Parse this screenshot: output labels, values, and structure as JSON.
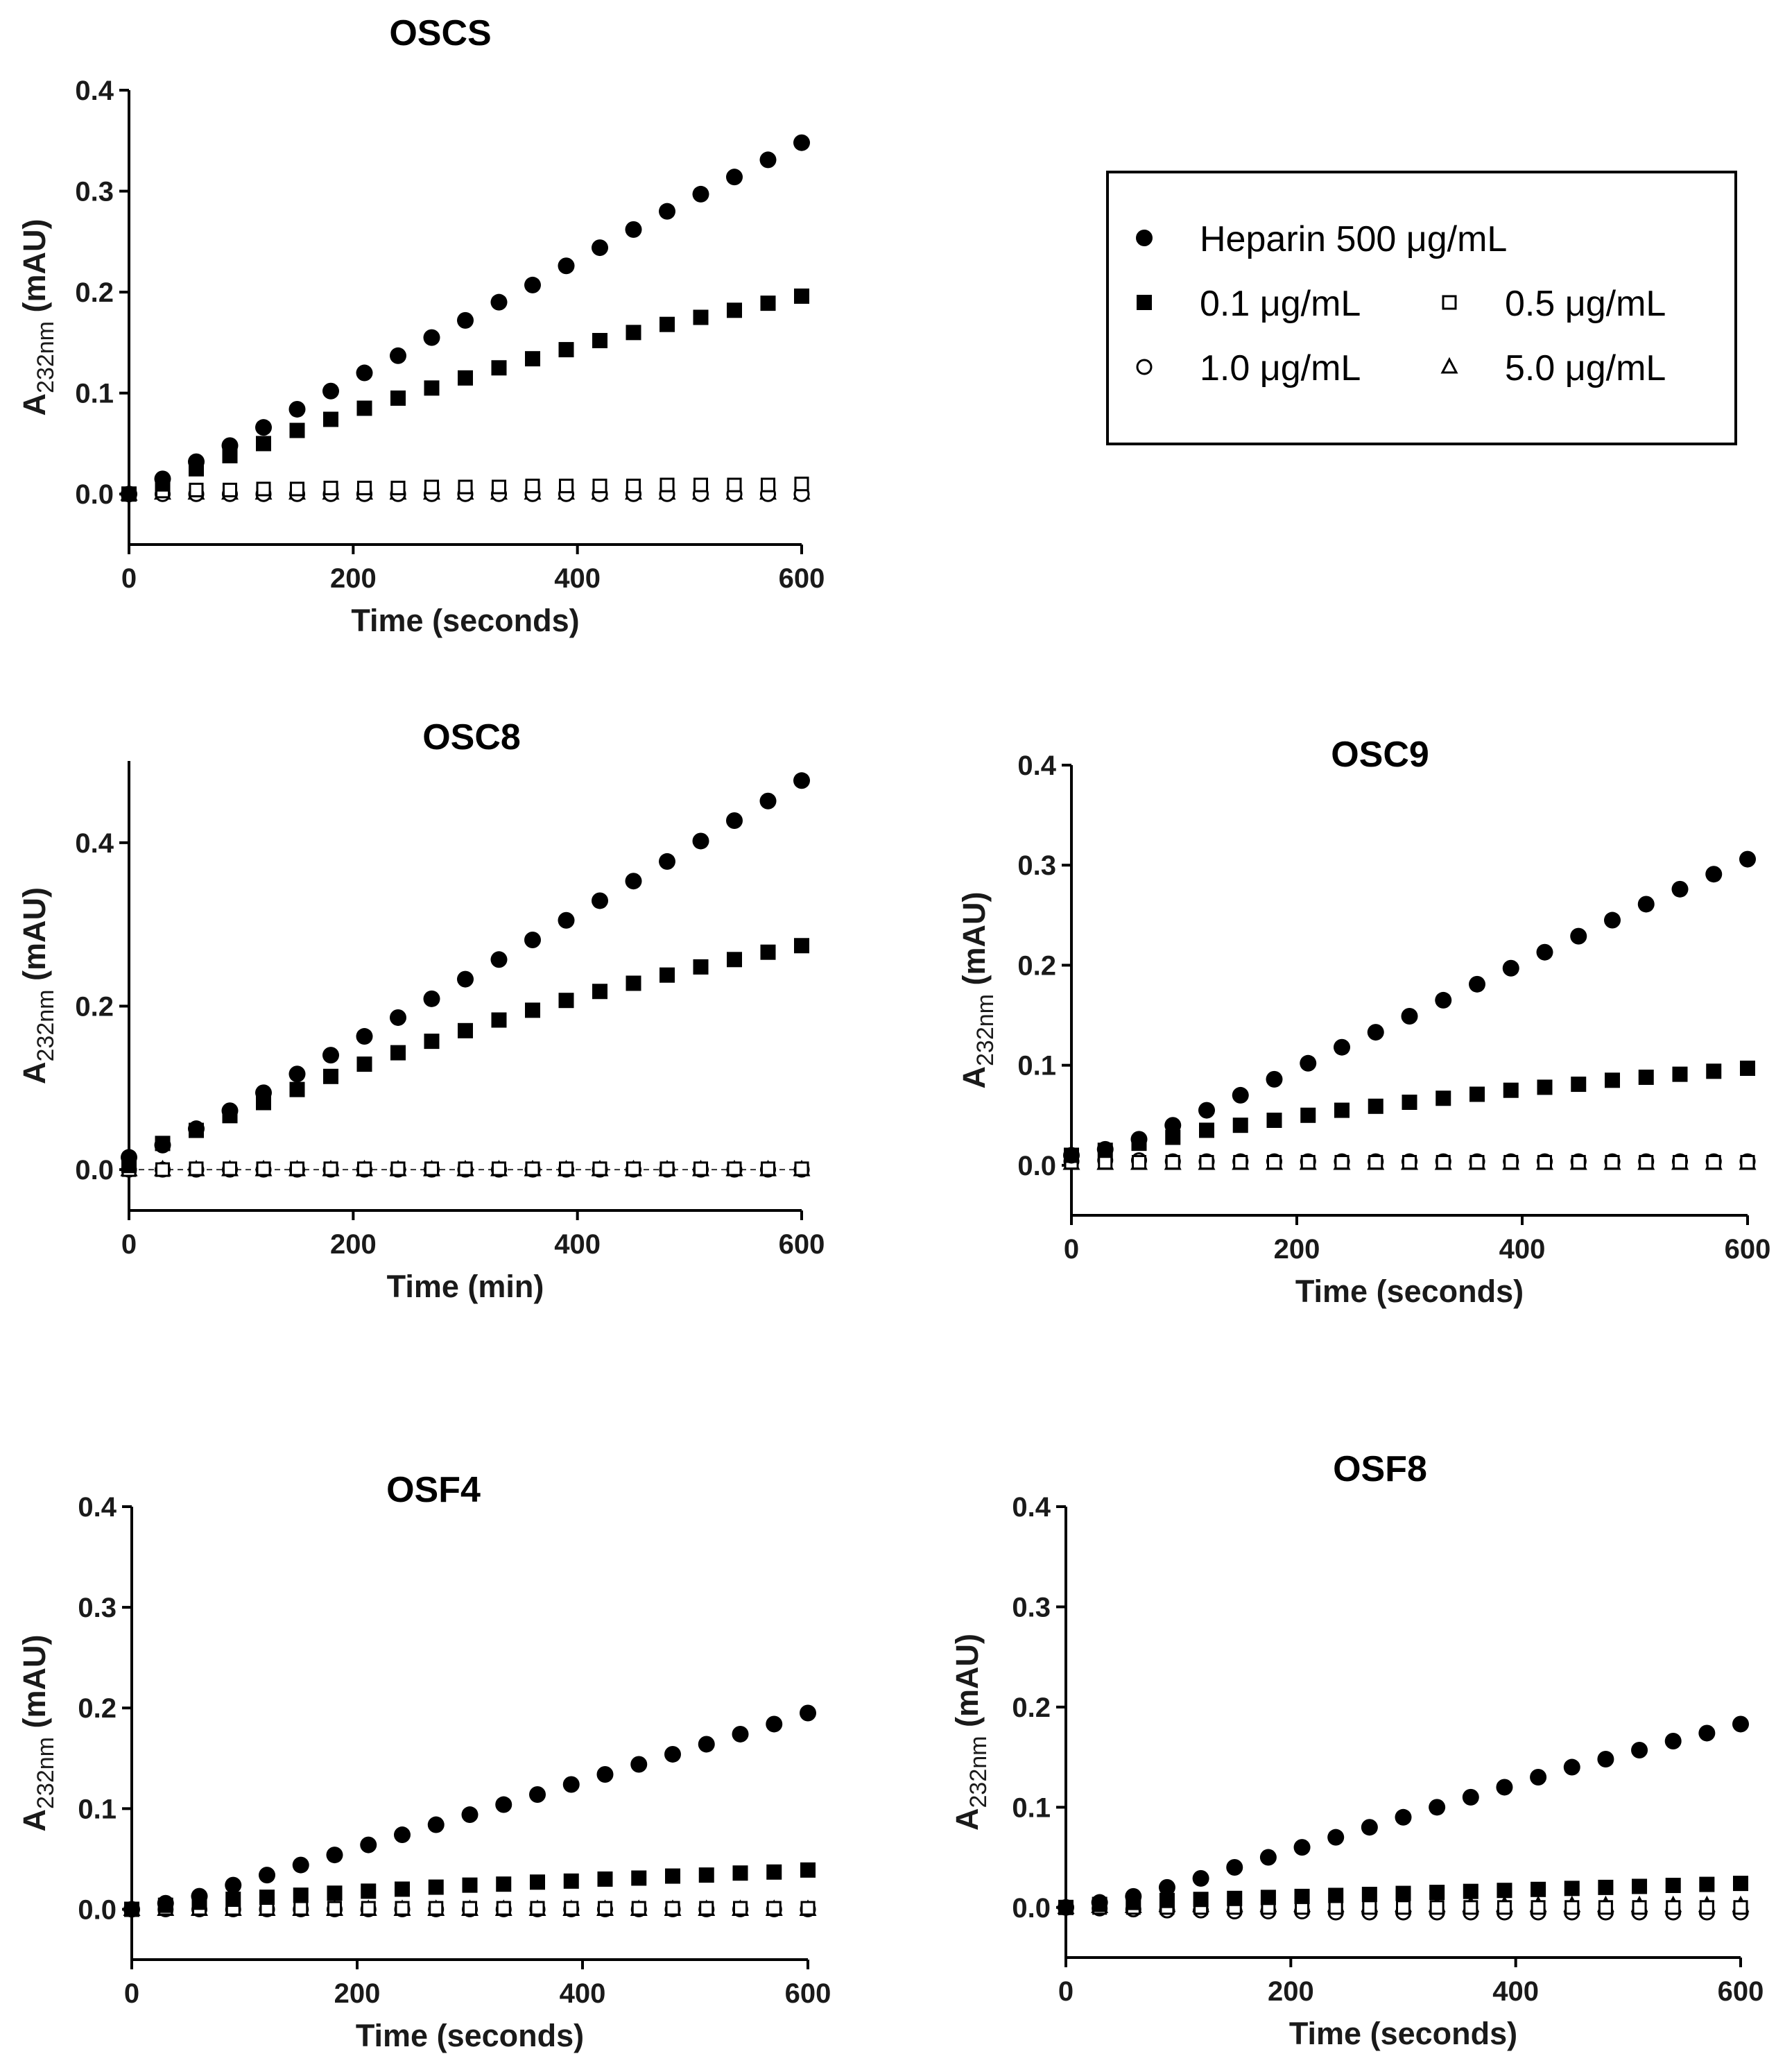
{
  "colors": {
    "marker": "#000000",
    "background": "#ffffff"
  },
  "legend": {
    "entries": [
      {
        "marker": "filled-circle",
        "label": "Heparin 500 μg/mL"
      },
      {
        "marker": "filled-square",
        "label": "0.1 μg/mL"
      },
      {
        "marker": "open-square",
        "label": "0.5 μg/mL"
      },
      {
        "marker": "open-circle",
        "label": "1.0 μg/mL"
      },
      {
        "marker": "open-triangle",
        "label": "5.0 μg/mL"
      }
    ]
  },
  "chart_data": [
    {
      "id": "oscs",
      "type": "scatter",
      "title": "OSCS",
      "xlabel": "Time (seconds)",
      "ylabel_main": "A",
      "ylabel_sub": "232nm",
      "ylabel_unit": " (mAU)",
      "xlim": [
        0,
        600
      ],
      "ylim": [
        -0.05,
        0.4
      ],
      "xticks": [
        0,
        200,
        400,
        600
      ],
      "xtick_labels": [
        "0",
        "200",
        "400",
        "600"
      ],
      "yticks": [
        0.0,
        0.1,
        0.2,
        0.3,
        0.4
      ],
      "ytick_labels": [
        "0.0",
        "0.1",
        "0.2",
        "0.3",
        "0.4"
      ],
      "x": [
        0,
        30,
        60,
        90,
        120,
        150,
        180,
        210,
        240,
        270,
        300,
        330,
        360,
        390,
        420,
        450,
        480,
        510,
        540,
        570,
        600
      ],
      "series": [
        {
          "name": "Heparin 500 μg/mL",
          "marker": "filled-circle",
          "values": [
            0.0,
            0.015,
            0.032,
            0.048,
            0.066,
            0.084,
            0.102,
            0.12,
            0.137,
            0.155,
            0.172,
            0.19,
            0.207,
            0.226,
            0.244,
            0.262,
            0.28,
            0.297,
            0.314,
            0.331,
            0.348
          ]
        },
        {
          "name": "0.1 μg/mL",
          "marker": "filled-square",
          "values": [
            0.0,
            0.01,
            0.025,
            0.038,
            0.05,
            0.063,
            0.074,
            0.085,
            0.095,
            0.105,
            0.115,
            0.125,
            0.134,
            0.143,
            0.152,
            0.16,
            0.168,
            0.175,
            0.182,
            0.189,
            0.196
          ]
        },
        {
          "name": "0.5 μg/mL",
          "marker": "open-square",
          "values": [
            0.0,
            0.003,
            0.004,
            0.004,
            0.005,
            0.005,
            0.006,
            0.006,
            0.006,
            0.007,
            0.007,
            0.007,
            0.008,
            0.008,
            0.008,
            0.008,
            0.009,
            0.009,
            0.009,
            0.009,
            0.01
          ]
        },
        {
          "name": "1.0 μg/mL",
          "marker": "open-circle",
          "values": [
            0.0,
            0.0,
            0.0,
            0.0,
            0.0,
            0.0,
            0.0,
            0.0,
            0.0,
            0.0,
            0.0,
            0.0,
            0.0,
            0.0,
            0.0,
            0.0,
            0.0,
            0.0,
            0.0,
            0.0,
            0.0
          ]
        },
        {
          "name": "5.0 μg/mL",
          "marker": "open-triangle",
          "values": [
            0.0,
            0.001,
            0.001,
            0.001,
            0.001,
            0.001,
            0.001,
            0.001,
            0.001,
            0.001,
            0.001,
            0.001,
            0.001,
            0.001,
            0.001,
            0.001,
            0.001,
            0.001,
            0.001,
            0.001,
            0.001
          ]
        }
      ]
    },
    {
      "id": "osc8",
      "type": "scatter",
      "title": "OSC8",
      "xlabel": "Time (min)",
      "ylabel_main": "A",
      "ylabel_sub": "232nm",
      "ylabel_unit": " (mAU)",
      "xlim": [
        0,
        600
      ],
      "ylim": [
        -0.05,
        0.5
      ],
      "xticks": [
        0,
        200,
        400,
        600
      ],
      "xtick_labels": [
        "0",
        "200",
        "400",
        "600"
      ],
      "yticks": [
        0.0,
        0.2,
        0.4
      ],
      "ytick_labels": [
        "0.0",
        "0.2",
        "0.4"
      ],
      "x": [
        0,
        30,
        60,
        90,
        120,
        150,
        180,
        210,
        240,
        270,
        300,
        330,
        360,
        390,
        420,
        450,
        480,
        510,
        540,
        570,
        600
      ],
      "series": [
        {
          "name": "Heparin 500 μg/mL",
          "marker": "filled-circle",
          "values": [
            0.015,
            0.03,
            0.05,
            0.072,
            0.094,
            0.117,
            0.14,
            0.163,
            0.186,
            0.209,
            0.233,
            0.257,
            0.281,
            0.305,
            0.329,
            0.353,
            0.377,
            0.402,
            0.427,
            0.451,
            0.476
          ]
        },
        {
          "name": "0.1 μg/mL",
          "marker": "filled-square",
          "values": [
            0.005,
            0.032,
            0.048,
            0.066,
            0.082,
            0.098,
            0.114,
            0.129,
            0.143,
            0.157,
            0.17,
            0.183,
            0.195,
            0.207,
            0.218,
            0.228,
            0.238,
            0.248,
            0.257,
            0.266,
            0.274
          ]
        },
        {
          "name": "0.5 μg/mL",
          "marker": "open-square",
          "values": [
            0.0,
            0.0,
            0.001,
            0.001,
            0.001,
            0.001,
            0.001,
            0.001,
            0.001,
            0.001,
            0.001,
            0.001,
            0.001,
            0.001,
            0.001,
            0.001,
            0.001,
            0.001,
            0.001,
            0.001,
            0.001
          ]
        },
        {
          "name": "1.0 μg/mL",
          "marker": "open-circle",
          "values": [
            0.0,
            0.0,
            0.0,
            0.0,
            0.0,
            0.0,
            0.0,
            0.0,
            0.0,
            0.0,
            0.0,
            0.0,
            0.0,
            0.0,
            0.0,
            0.0,
            0.0,
            0.0,
            0.0,
            0.0,
            0.0
          ]
        },
        {
          "name": "5.0 μg/mL",
          "marker": "open-triangle",
          "values": [
            0.0,
            0.0,
            0.0,
            0.0,
            0.0,
            0.0,
            0.0,
            0.0,
            0.0,
            0.0,
            0.0,
            0.0,
            0.0,
            0.0,
            0.0,
            0.0,
            0.0,
            0.0,
            0.0,
            0.0,
            0.0
          ]
        }
      ]
    },
    {
      "id": "osc9",
      "type": "scatter",
      "title": "OSC9",
      "xlabel": "Time (seconds)",
      "ylabel_main": "A",
      "ylabel_sub": "232nm",
      "ylabel_unit": " (mAU)",
      "xlim": [
        0,
        600
      ],
      "ylim": [
        -0.05,
        0.4
      ],
      "xticks": [
        0,
        200,
        400,
        600
      ],
      "xtick_labels": [
        "0",
        "200",
        "400",
        "600"
      ],
      "yticks": [
        0.0,
        0.1,
        0.2,
        0.3,
        0.4
      ],
      "ytick_labels": [
        "0.0",
        "0.1",
        "0.2",
        "0.3",
        "0.4"
      ],
      "x": [
        0,
        30,
        60,
        90,
        120,
        150,
        180,
        210,
        240,
        270,
        300,
        330,
        360,
        390,
        420,
        450,
        480,
        510,
        540,
        570,
        600
      ],
      "series": [
        {
          "name": "Heparin 500 μg/mL",
          "marker": "filled-circle",
          "values": [
            0.01,
            0.016,
            0.026,
            0.04,
            0.055,
            0.07,
            0.086,
            0.102,
            0.118,
            0.133,
            0.149,
            0.165,
            0.181,
            0.197,
            0.213,
            0.229,
            0.245,
            0.261,
            0.276,
            0.291,
            0.306
          ]
        },
        {
          "name": "0.1 μg/mL",
          "marker": "filled-square",
          "values": [
            0.01,
            0.015,
            0.022,
            0.028,
            0.035,
            0.04,
            0.045,
            0.05,
            0.055,
            0.059,
            0.063,
            0.067,
            0.071,
            0.075,
            0.078,
            0.081,
            0.085,
            0.088,
            0.091,
            0.094,
            0.097
          ]
        },
        {
          "name": "0.5 μg/mL",
          "marker": "open-square",
          "values": [
            0.003,
            0.003,
            0.003,
            0.003,
            0.003,
            0.003,
            0.003,
            0.003,
            0.003,
            0.003,
            0.003,
            0.003,
            0.003,
            0.003,
            0.003,
            0.003,
            0.003,
            0.003,
            0.003,
            0.003,
            0.003
          ]
        },
        {
          "name": "1.0 μg/mL",
          "marker": "open-circle",
          "values": [
            0.004,
            0.005,
            0.005,
            0.004,
            0.004,
            0.004,
            0.004,
            0.004,
            0.004,
            0.004,
            0.004,
            0.004,
            0.004,
            0.004,
            0.004,
            0.004,
            0.004,
            0.004,
            0.004,
            0.004,
            0.004
          ]
        },
        {
          "name": "5.0 μg/mL",
          "marker": "open-triangle",
          "values": [
            0.002,
            0.002,
            0.002,
            0.002,
            0.002,
            0.002,
            0.002,
            0.002,
            0.002,
            0.002,
            0.002,
            0.002,
            0.002,
            0.002,
            0.002,
            0.002,
            0.002,
            0.002,
            0.002,
            0.002,
            0.002
          ]
        }
      ]
    },
    {
      "id": "osf4",
      "type": "scatter",
      "title": "OSF4",
      "xlabel": "Time (seconds)",
      "ylabel_main": "A",
      "ylabel_sub": "232nm",
      "ylabel_unit": " (mAU)",
      "xlim": [
        0,
        600
      ],
      "ylim": [
        -0.05,
        0.4
      ],
      "xticks": [
        0,
        200,
        400,
        600
      ],
      "xtick_labels": [
        "0",
        "200",
        "400",
        "600"
      ],
      "yticks": [
        0.0,
        0.1,
        0.2,
        0.3,
        0.4
      ],
      "ytick_labels": [
        "0.0",
        "0.1",
        "0.2",
        "0.3",
        "0.4"
      ],
      "x": [
        0,
        30,
        60,
        90,
        120,
        150,
        180,
        210,
        240,
        270,
        300,
        330,
        360,
        390,
        420,
        450,
        480,
        510,
        540,
        570,
        600
      ],
      "series": [
        {
          "name": "Heparin 500 μg/mL",
          "marker": "filled-circle",
          "values": [
            0.0,
            0.006,
            0.013,
            0.024,
            0.034,
            0.044,
            0.054,
            0.064,
            0.074,
            0.084,
            0.094,
            0.104,
            0.114,
            0.124,
            0.134,
            0.144,
            0.154,
            0.164,
            0.174,
            0.184,
            0.195
          ]
        },
        {
          "name": "0.1 μg/mL",
          "marker": "filled-square",
          "values": [
            0.0,
            0.004,
            0.007,
            0.01,
            0.012,
            0.014,
            0.016,
            0.018,
            0.02,
            0.022,
            0.024,
            0.025,
            0.027,
            0.028,
            0.03,
            0.031,
            0.033,
            0.034,
            0.036,
            0.037,
            0.039
          ]
        },
        {
          "name": "0.5 μg/mL",
          "marker": "open-square",
          "values": [
            0.0,
            0.001,
            0.001,
            0.001,
            0.001,
            0.001,
            0.001,
            0.001,
            0.001,
            0.001,
            0.001,
            0.001,
            0.001,
            0.001,
            0.001,
            0.001,
            0.001,
            0.001,
            0.001,
            0.001,
            0.001
          ]
        },
        {
          "name": "1.0 μg/mL",
          "marker": "open-circle",
          "values": [
            0.0,
            0.0,
            0.0,
            0.0,
            0.0,
            0.0,
            0.0,
            0.0,
            0.0,
            0.0,
            0.0,
            0.0,
            0.0,
            0.0,
            0.0,
            0.0,
            0.0,
            0.0,
            0.0,
            0.0,
            0.0
          ]
        },
        {
          "name": "5.0 μg/mL",
          "marker": "open-triangle",
          "values": [
            0.0,
            0.0,
            0.0,
            0.0,
            0.0,
            0.0,
            0.0,
            0.0,
            0.0,
            0.0,
            0.0,
            0.0,
            0.0,
            0.0,
            0.0,
            0.0,
            0.0,
            0.0,
            0.0,
            0.0,
            0.0
          ]
        }
      ]
    },
    {
      "id": "osf8",
      "type": "scatter",
      "title": "OSF8",
      "xlabel": "Time (seconds)",
      "ylabel_main": "A",
      "ylabel_sub": "232nm",
      "ylabel_unit": " (mAU)",
      "xlim": [
        0,
        600
      ],
      "ylim": [
        -0.05,
        0.4
      ],
      "xticks": [
        0,
        200,
        400,
        600
      ],
      "xtick_labels": [
        "0",
        "200",
        "400",
        "600"
      ],
      "yticks": [
        0.0,
        0.1,
        0.2,
        0.3,
        0.4
      ],
      "ytick_labels": [
        "0.0",
        "0.1",
        "0.2",
        "0.3",
        "0.4"
      ],
      "x": [
        0,
        30,
        60,
        90,
        120,
        150,
        180,
        210,
        240,
        270,
        300,
        330,
        360,
        390,
        420,
        450,
        480,
        510,
        540,
        570,
        600
      ],
      "series": [
        {
          "name": "Heparin 500 μg/mL",
          "marker": "filled-circle",
          "values": [
            0.0,
            0.005,
            0.011,
            0.02,
            0.029,
            0.04,
            0.05,
            0.06,
            0.07,
            0.08,
            0.09,
            0.1,
            0.11,
            0.12,
            0.13,
            0.14,
            0.148,
            0.157,
            0.166,
            0.174,
            0.183
          ]
        },
        {
          "name": "0.1 μg/mL",
          "marker": "filled-square",
          "values": [
            0.0,
            0.003,
            0.005,
            0.007,
            0.008,
            0.009,
            0.01,
            0.011,
            0.012,
            0.013,
            0.014,
            0.015,
            0.016,
            0.017,
            0.018,
            0.019,
            0.02,
            0.021,
            0.022,
            0.023,
            0.024
          ]
        },
        {
          "name": "0.5 μg/mL",
          "marker": "open-square",
          "values": [
            0.0,
            0.0,
            0.0,
            0.0,
            0.0,
            0.0,
            0.0,
            0.0,
            0.0,
            0.0,
            0.0,
            0.0,
            0.0,
            0.0,
            0.0,
            0.0,
            0.0,
            0.0,
            0.0,
            0.0,
            0.0
          ]
        },
        {
          "name": "1.0 μg/mL",
          "marker": "open-circle",
          "values": [
            0.0,
            -0.001,
            -0.002,
            -0.003,
            -0.003,
            -0.004,
            -0.004,
            -0.004,
            -0.005,
            -0.005,
            -0.005,
            -0.005,
            -0.005,
            -0.005,
            -0.005,
            -0.005,
            -0.005,
            -0.005,
            -0.005,
            -0.005,
            -0.005
          ]
        },
        {
          "name": "5.0 μg/mL",
          "marker": "open-triangle",
          "values": [
            0.0,
            0.001,
            0.001,
            0.002,
            0.002,
            0.002,
            0.002,
            0.002,
            0.002,
            0.002,
            0.002,
            0.002,
            0.002,
            0.002,
            0.002,
            0.002,
            0.002,
            0.002,
            0.002,
            0.002,
            0.002
          ]
        }
      ]
    }
  ]
}
